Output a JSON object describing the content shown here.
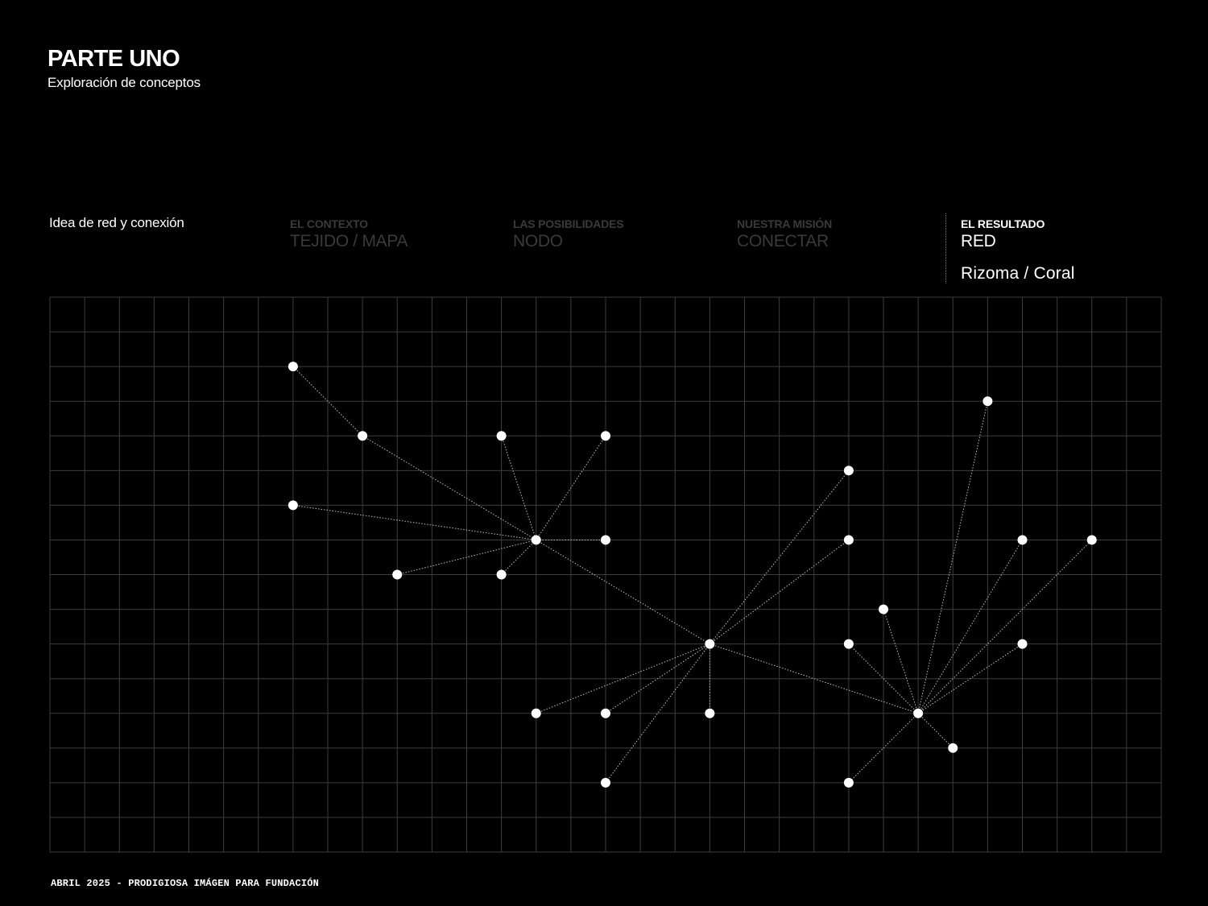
{
  "header": {
    "title": "PARTE UNO",
    "subtitle": "Exploración de conceptos"
  },
  "concept": {
    "title": "Idea de red y conexión"
  },
  "columns": [
    {
      "label": "EL CONTEXTO",
      "value": "TEJIDO / MAPA"
    },
    {
      "label": "LAS POSIBILIDADES",
      "value": "NODO"
    },
    {
      "label": "NUESTRA MISIÓN",
      "value": "CONECTAR"
    },
    {
      "label": "EL RESULTADO",
      "value": "RED",
      "extra": "Rizoma / Coral"
    }
  ],
  "colors": {
    "background": "#000000",
    "grid_line": "#3d3d3d",
    "node": "#ffffff",
    "edge": "#bdbdbd",
    "dim_text": "#3a3a3a"
  },
  "diagram": {
    "grid_cols": 32,
    "grid_rows": 16,
    "nodes": [
      {
        "id": "n1",
        "col": 7,
        "row": 2
      },
      {
        "id": "n2",
        "col": 9,
        "row": 4
      },
      {
        "id": "n3",
        "col": 13,
        "row": 4
      },
      {
        "id": "n4",
        "col": 16,
        "row": 4
      },
      {
        "id": "n5",
        "col": 7,
        "row": 6
      },
      {
        "id": "h1",
        "col": 14,
        "row": 7
      },
      {
        "id": "n6",
        "col": 16,
        "row": 7
      },
      {
        "id": "n7",
        "col": 10,
        "row": 8
      },
      {
        "id": "n8",
        "col": 13,
        "row": 8
      },
      {
        "id": "h2",
        "col": 19,
        "row": 10
      },
      {
        "id": "n9",
        "col": 14,
        "row": 12
      },
      {
        "id": "n10",
        "col": 16,
        "row": 12
      },
      {
        "id": "n11",
        "col": 19,
        "row": 12
      },
      {
        "id": "n12",
        "col": 16,
        "row": 14
      },
      {
        "id": "n13",
        "col": 23,
        "row": 5
      },
      {
        "id": "n14",
        "col": 23,
        "row": 7
      },
      {
        "id": "h3",
        "col": 25,
        "row": 12
      },
      {
        "id": "n15",
        "col": 27,
        "row": 3
      },
      {
        "id": "n16",
        "col": 28,
        "row": 7
      },
      {
        "id": "n17",
        "col": 30,
        "row": 7
      },
      {
        "id": "n18",
        "col": 24,
        "row": 9
      },
      {
        "id": "n19",
        "col": 23,
        "row": 10
      },
      {
        "id": "n20",
        "col": 28,
        "row": 10
      },
      {
        "id": "n21",
        "col": 26,
        "row": 13
      },
      {
        "id": "n22",
        "col": 23,
        "row": 14
      }
    ],
    "edges": [
      [
        "n1",
        "n2"
      ],
      [
        "n2",
        "h1"
      ],
      [
        "n3",
        "h1"
      ],
      [
        "n4",
        "h1"
      ],
      [
        "n5",
        "h1"
      ],
      [
        "n6",
        "h1"
      ],
      [
        "n7",
        "h1"
      ],
      [
        "n8",
        "h1"
      ],
      [
        "h1",
        "h2"
      ],
      [
        "h2",
        "n13"
      ],
      [
        "h2",
        "n14"
      ],
      [
        "h2",
        "n9"
      ],
      [
        "h2",
        "n10"
      ],
      [
        "h2",
        "n11"
      ],
      [
        "h2",
        "n12"
      ],
      [
        "h2",
        "h3"
      ],
      [
        "h3",
        "n15"
      ],
      [
        "h3",
        "n16"
      ],
      [
        "h3",
        "n17"
      ],
      [
        "h3",
        "n18"
      ],
      [
        "h3",
        "n19"
      ],
      [
        "h3",
        "n20"
      ],
      [
        "h3",
        "n21"
      ],
      [
        "h3",
        "n22"
      ]
    ]
  },
  "footer": {
    "text": "ABRIL 2025 - PRODIGIOSA IMÁGEN PARA FUNDACIÓN"
  }
}
